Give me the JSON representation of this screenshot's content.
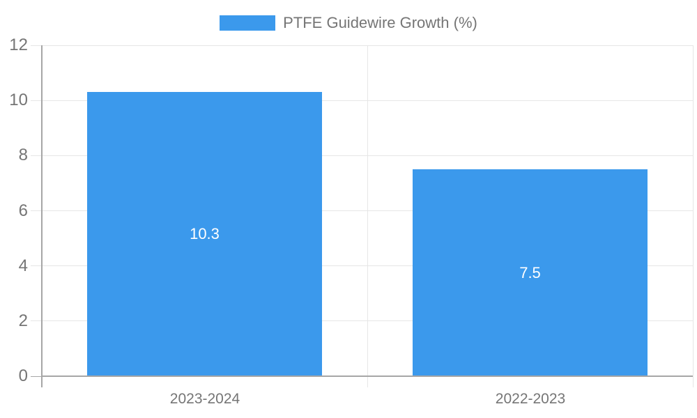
{
  "chart_data": {
    "type": "bar",
    "title": "",
    "legend": {
      "label": "PTFE Guidewire Growth (%)",
      "position": "top"
    },
    "categories": [
      "2023-2024",
      "2022-2023"
    ],
    "values": [
      10.3,
      7.5
    ],
    "value_labels": [
      "10.3",
      "7.5"
    ],
    "xlabel": "",
    "ylabel": "",
    "ylim": [
      0,
      12
    ],
    "yticks": [
      0,
      2,
      4,
      6,
      8,
      10,
      12
    ],
    "grid": true,
    "colors": {
      "bar": "#3B99EC",
      "grid": "#E6E6E6",
      "axis": "#A6A6A6",
      "label_text": "#757575",
      "bar_label_text": "#FFFFFF",
      "background": "#FFFFFF"
    }
  }
}
